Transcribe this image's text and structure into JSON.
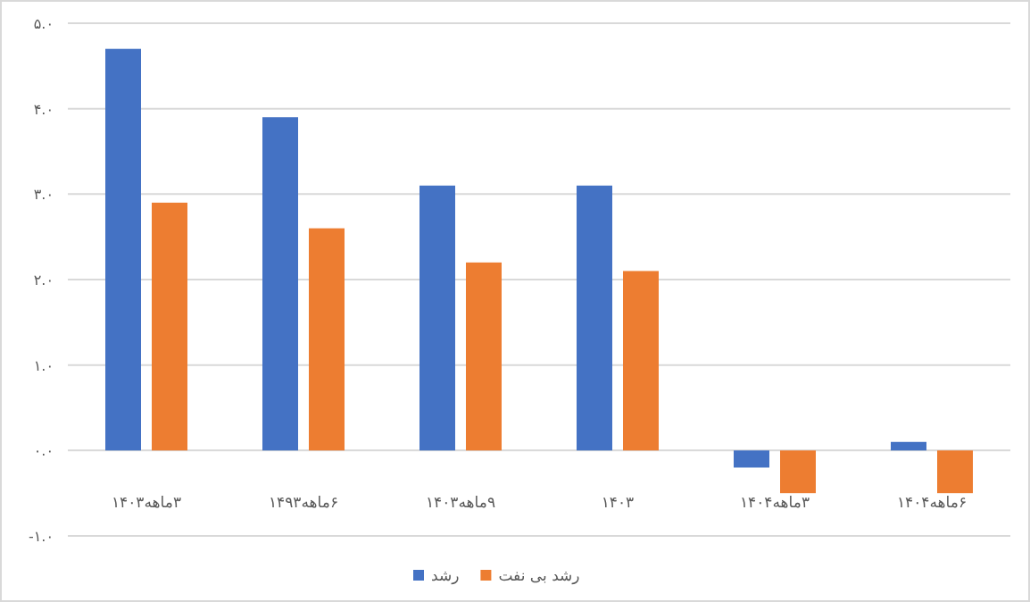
{
  "chart_data": {
    "type": "bar",
    "categories": [
      "۳ماهه۱۴۰۳",
      "۶ماهه۱۴۹۳",
      "۹ماهه۱۴۰۳",
      "۱۴۰۳",
      "۳ماهه۱۴۰۴",
      "۶ماهه۱۴۰۴"
    ],
    "series": [
      {
        "name": "رشد",
        "color": "#4472c4",
        "values": [
          4.7,
          3.9,
          3.1,
          3.1,
          -0.2,
          0.1
        ]
      },
      {
        "name": "رشد بی نفت",
        "color": "#ed7d31",
        "values": [
          2.9,
          2.6,
          2.2,
          2.1,
          -0.5,
          -0.5
        ]
      }
    ],
    "ylim": [
      -1,
      5
    ],
    "yticks": [
      {
        "value": -1,
        "label": "-۱.۰"
      },
      {
        "value": 0,
        "label": "۰.۰"
      },
      {
        "value": 1,
        "label": "۱.۰"
      },
      {
        "value": 2,
        "label": "۲.۰"
      },
      {
        "value": 3,
        "label": "۳.۰"
      },
      {
        "value": 4,
        "label": "۴.۰"
      },
      {
        "value": 5,
        "label": "۵.۰"
      }
    ],
    "grid": "y",
    "legend": "bottom"
  }
}
